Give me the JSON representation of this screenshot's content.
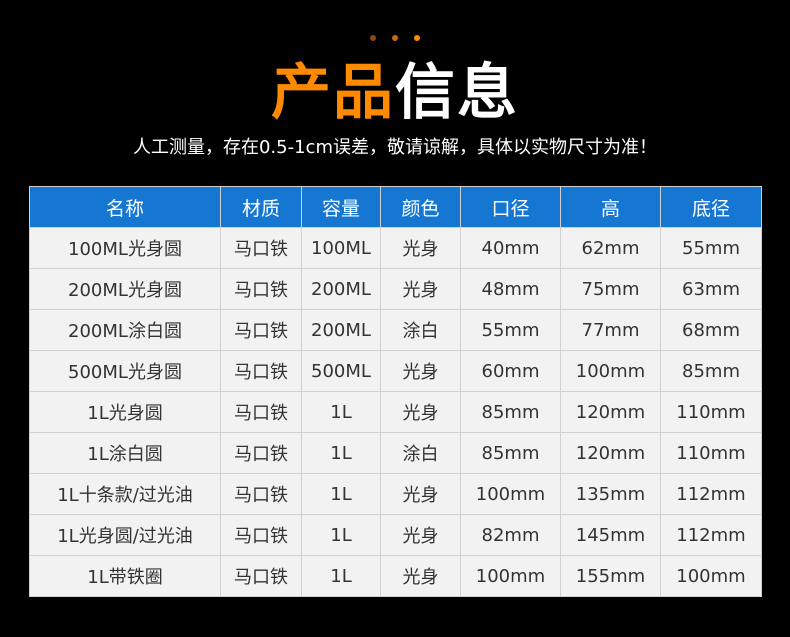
{
  "colors": {
    "accent": "#ff8a00",
    "header_bg": "#1677d2",
    "row_bg": "#f2f2f2",
    "dots": [
      "#8a4a10",
      "#c66c10",
      "#ff8a00"
    ]
  },
  "title": {
    "orange": "产品",
    "white": "信息"
  },
  "subtitle": "人工测量，存在0.5-1cm误差，敬请谅解，具体以实物尺寸为准！",
  "table": {
    "headers": [
      "名称",
      "材质",
      "容量",
      "颜色",
      "口径",
      "高",
      "底径"
    ],
    "rows": [
      [
        "100ML光身圆",
        "马口铁",
        "100ML",
        "光身",
        "40mm",
        "62mm",
        "55mm"
      ],
      [
        "200ML光身圆",
        "马口铁",
        "200ML",
        "光身",
        "48mm",
        "75mm",
        "63mm"
      ],
      [
        "200ML涂白圆",
        "马口铁",
        "200ML",
        "涂白",
        "55mm",
        "77mm",
        "68mm"
      ],
      [
        "500ML光身圆",
        "马口铁",
        "500ML",
        "光身",
        "60mm",
        "100mm",
        "85mm"
      ],
      [
        "1L光身圆",
        "马口铁",
        "1L",
        "光身",
        "85mm",
        "120mm",
        "110mm"
      ],
      [
        "1L涂白圆",
        "马口铁",
        "1L",
        "涂白",
        "85mm",
        "120mm",
        "110mm"
      ],
      [
        "1L十条款/过光油",
        "马口铁",
        "1L",
        "光身",
        "100mm",
        "135mm",
        "112mm"
      ],
      [
        "1L光身圆/过光油",
        "马口铁",
        "1L",
        "光身",
        "82mm",
        "145mm",
        "112mm"
      ],
      [
        "1L带铁圈",
        "马口铁",
        "1L",
        "光身",
        "100mm",
        "155mm",
        "100mm"
      ]
    ]
  }
}
